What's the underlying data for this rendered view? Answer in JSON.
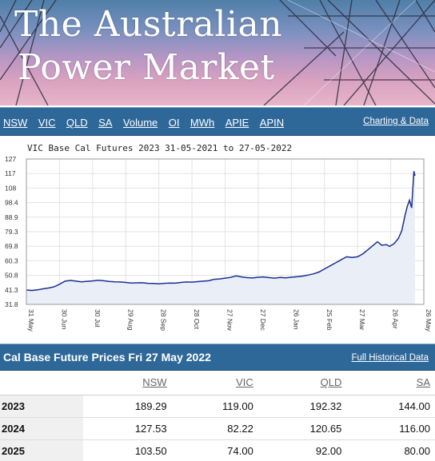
{
  "banner": {
    "title_line1": "The Australian",
    "title_line2": "Power Market"
  },
  "nav": {
    "links": [
      "NSW",
      "VIC",
      "QLD",
      "SA",
      "Volume",
      "OI",
      "MWh",
      "APIE",
      "APIN"
    ],
    "right_link": "Charting & Data"
  },
  "chart": {
    "title": "VIC Base Cal Futures 2023 31-05-2021 to 27-05-2022"
  },
  "chart_data": {
    "type": "area",
    "title": "VIC Base Cal Futures 2023 31-05-2021 to 27-05-2022",
    "y_ticks": [
      "127",
      "117",
      "108",
      "98.4",
      "88.9",
      "79.3",
      "69.8",
      "60.3",
      "50.8",
      "41.3",
      "31.8"
    ],
    "x_ticks": [
      "31 May",
      "30 Jun",
      "30 Jul",
      "29 Aug",
      "28 Sep",
      "28 Oct",
      "27 Nov",
      "27 Dec",
      "26 Jan",
      "25 Feb",
      "27 Mar",
      "26 Apr",
      "26 May"
    ],
    "ylim": [
      31.8,
      127
    ],
    "xlim": [
      0,
      360
    ],
    "series": [
      {
        "points": [
          [
            0,
            41.2
          ],
          [
            5,
            40.9
          ],
          [
            10,
            41.3
          ],
          [
            15,
            42.0
          ],
          [
            20,
            42.5
          ],
          [
            25,
            43.3
          ],
          [
            30,
            45.0
          ],
          [
            35,
            47.0
          ],
          [
            40,
            47.5
          ],
          [
            45,
            47.0
          ],
          [
            50,
            46.6
          ],
          [
            55,
            46.9
          ],
          [
            60,
            47.2
          ],
          [
            65,
            47.6
          ],
          [
            70,
            47.3
          ],
          [
            75,
            46.8
          ],
          [
            80,
            46.6
          ],
          [
            85,
            46.5
          ],
          [
            90,
            46.2
          ],
          [
            95,
            45.8
          ],
          [
            100,
            45.9
          ],
          [
            105,
            46.0
          ],
          [
            110,
            45.6
          ],
          [
            115,
            45.5
          ],
          [
            120,
            45.3
          ],
          [
            125,
            45.6
          ],
          [
            130,
            45.8
          ],
          [
            135,
            45.7
          ],
          [
            140,
            46.2
          ],
          [
            145,
            46.5
          ],
          [
            150,
            46.4
          ],
          [
            155,
            46.7
          ],
          [
            160,
            47.0
          ],
          [
            165,
            47.3
          ],
          [
            170,
            48.2
          ],
          [
            175,
            48.5
          ],
          [
            180,
            49.0
          ],
          [
            185,
            49.5
          ],
          [
            190,
            50.5
          ],
          [
            195,
            49.8
          ],
          [
            200,
            49.3
          ],
          [
            205,
            49.1
          ],
          [
            210,
            49.6
          ],
          [
            215,
            49.8
          ],
          [
            220,
            49.3
          ],
          [
            225,
            49.0
          ],
          [
            230,
            49.5
          ],
          [
            235,
            49.2
          ],
          [
            240,
            49.6
          ],
          [
            245,
            49.9
          ],
          [
            250,
            50.3
          ],
          [
            255,
            51.0
          ],
          [
            260,
            51.8
          ],
          [
            265,
            53.0
          ],
          [
            270,
            55.0
          ],
          [
            275,
            57.0
          ],
          [
            280,
            59.0
          ],
          [
            285,
            61.0
          ],
          [
            290,
            63.0
          ],
          [
            295,
            62.5
          ],
          [
            300,
            63.0
          ],
          [
            305,
            65.0
          ],
          [
            310,
            68.0
          ],
          [
            315,
            71.0
          ],
          [
            318,
            72.8
          ],
          [
            322,
            70.5
          ],
          [
            326,
            71.0
          ],
          [
            329,
            69.8
          ],
          [
            333,
            71.5
          ],
          [
            337,
            75.0
          ],
          [
            340,
            80.0
          ],
          [
            343,
            90.0
          ],
          [
            345,
            96.0
          ],
          [
            347,
            100.0
          ],
          [
            349,
            95.0
          ],
          [
            351,
            119.0
          ],
          [
            352,
            116.0
          ]
        ]
      }
    ]
  },
  "prices": {
    "title": "Cal Base Future Prices Fri 27 May 2022",
    "full_link": "Full Historical Data",
    "columns": [
      "NSW",
      "VIC",
      "QLD",
      "SA"
    ],
    "rows": [
      {
        "year": "2023",
        "values": [
          "189.29",
          "119.00",
          "192.32",
          "144.00"
        ]
      },
      {
        "year": "2024",
        "values": [
          "127.53",
          "82.22",
          "120.65",
          "116.00"
        ]
      },
      {
        "year": "2025",
        "values": [
          "103.50",
          "74.00",
          "92.00",
          "80.00"
        ]
      }
    ]
  }
}
